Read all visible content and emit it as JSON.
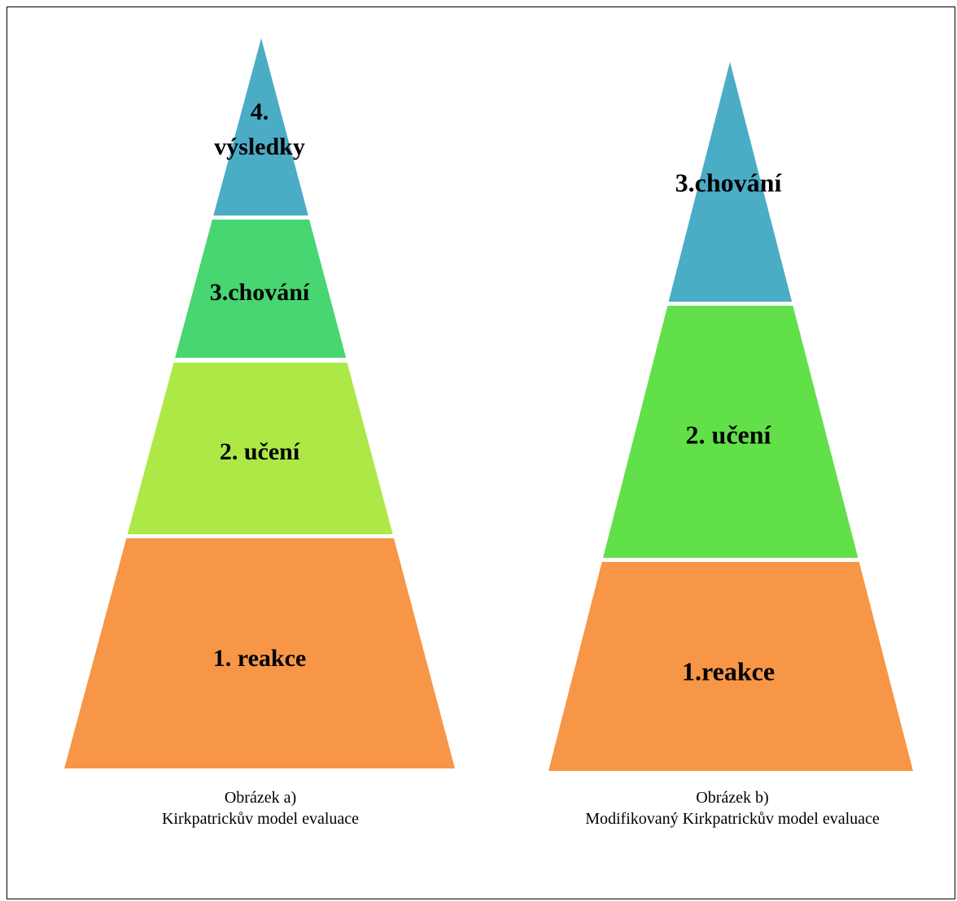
{
  "pyramids": [
    {
      "caption": {
        "line1": "Obrázek a)",
        "line2": "Kirkpatrickův model evaluace"
      },
      "levels": [
        {
          "label_lines": [
            "4.",
            "výsledky"
          ],
          "color": "#4BACC6"
        },
        {
          "label_lines": [
            "3.chování"
          ],
          "color": "#48D672"
        },
        {
          "label_lines": [
            "2. učení"
          ],
          "color": "#AEE846"
        },
        {
          "label_lines": [
            "1. reakce"
          ],
          "color": "#F79646"
        }
      ]
    },
    {
      "caption": {
        "line1": "Obrázek b)",
        "line2": "Modifikovaný Kirkpatrickův model evaluace"
      },
      "levels": [
        {
          "label_lines": [
            "3.chování"
          ],
          "color": "#4BACC6"
        },
        {
          "label_lines": [
            "2. učení"
          ],
          "color": "#62E04A"
        },
        {
          "label_lines": [
            "1.reakce"
          ],
          "color": "#F79646"
        }
      ]
    }
  ]
}
